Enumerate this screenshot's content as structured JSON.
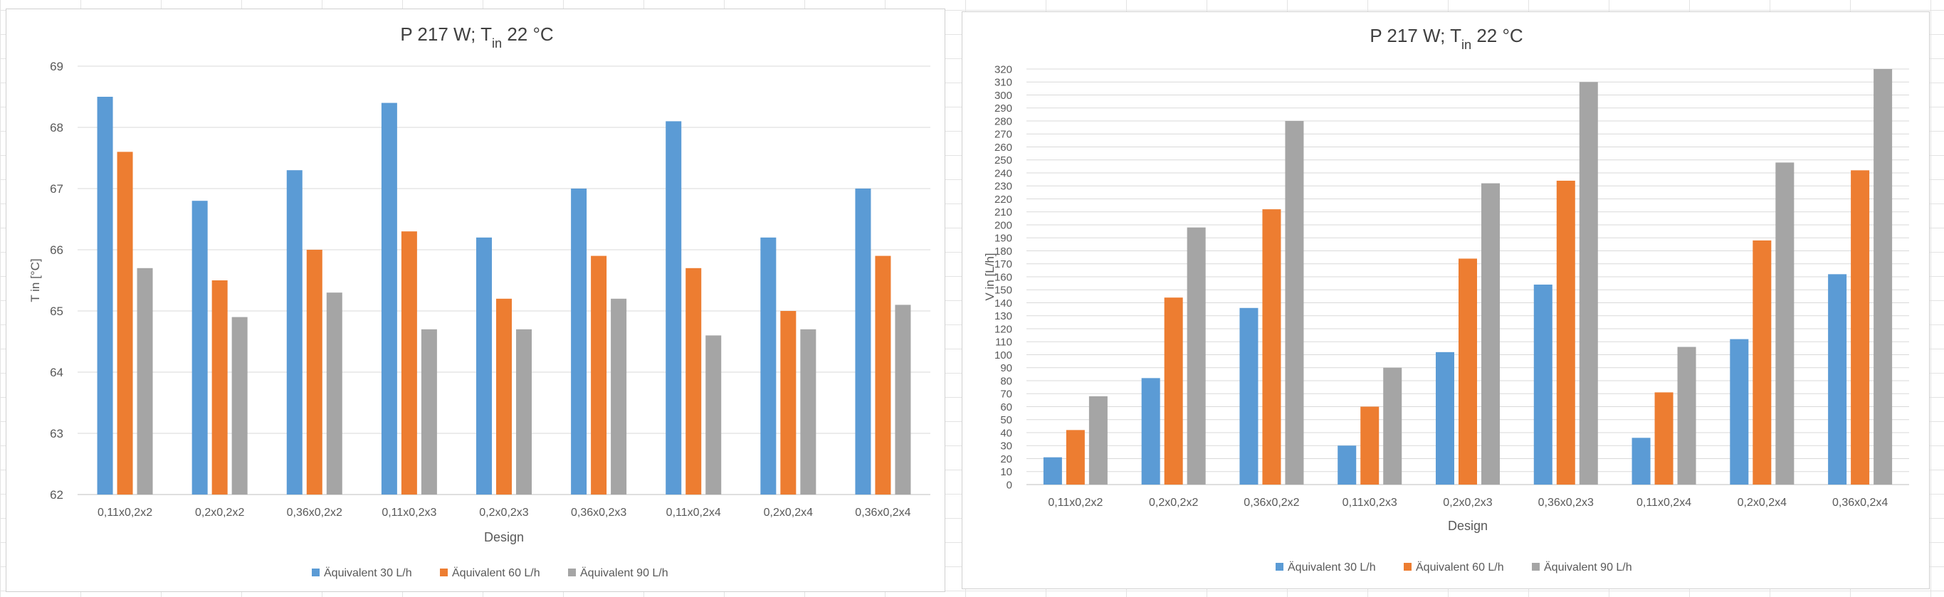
{
  "chart_data": [
    {
      "type": "bar",
      "title": "P 217 W; T",
      "title_sub": "in",
      "title_rest": " 22 °C",
      "xlabel": "Design",
      "ylabel": "T in [°C]",
      "ylim": [
        62,
        69
      ],
      "yticks": [
        62,
        63,
        64,
        65,
        66,
        67,
        68,
        69
      ],
      "grid": true,
      "legend_position": "bottom",
      "categories": [
        "0,11x0,2x2",
        "0,2x0,2x2",
        "0,36x0,2x2",
        "0,11x0,2x3",
        "0,2x0,2x3",
        "0,36x0,2x3",
        "0,11x0,2x4",
        "0,2x0,2x4",
        "0,36x0,2x4"
      ],
      "series": [
        {
          "name": "Äquivalent 30 L/h",
          "color": "#5b9bd5",
          "values": [
            68.5,
            66.8,
            67.3,
            68.4,
            66.2,
            67.0,
            68.1,
            66.2,
            67.0
          ]
        },
        {
          "name": "Äquivalent 60 L/h",
          "color": "#ed7d31",
          "values": [
            67.6,
            65.5,
            66.0,
            66.3,
            65.2,
            65.9,
            65.7,
            65.0,
            65.9
          ]
        },
        {
          "name": "Äquivalent 90 L/h",
          "color": "#a5a5a5",
          "values": [
            65.7,
            64.9,
            65.3,
            64.7,
            64.7,
            65.2,
            64.6,
            64.7,
            65.1
          ]
        }
      ]
    },
    {
      "type": "bar",
      "title": "P 217 W; T",
      "title_sub": "in",
      "title_rest": " 22 °C",
      "xlabel": "Design",
      "ylabel": "V in [L/h]",
      "ylim": [
        0,
        320
      ],
      "yticks": [
        0,
        10,
        20,
        30,
        40,
        50,
        60,
        70,
        80,
        90,
        100,
        110,
        120,
        130,
        140,
        150,
        160,
        170,
        180,
        190,
        200,
        210,
        220,
        230,
        240,
        250,
        260,
        270,
        280,
        290,
        300,
        310,
        320
      ],
      "grid": true,
      "legend_position": "bottom",
      "categories": [
        "0,11x0,2x2",
        "0,2x0,2x2",
        "0,36x0,2x2",
        "0,11x0,2x3",
        "0,2x0,2x3",
        "0,36x0,2x3",
        "0,11x0,2x4",
        "0,2x0,2x4",
        "0,36x0,2x4"
      ],
      "series": [
        {
          "name": "Äquivalent 30 L/h",
          "color": "#5b9bd5",
          "values": [
            21,
            82,
            136,
            30,
            102,
            154,
            36,
            112,
            162
          ]
        },
        {
          "name": "Äquivalent 60 L/h",
          "color": "#ed7d31",
          "values": [
            42,
            144,
            212,
            60,
            174,
            234,
            71,
            188,
            242
          ]
        },
        {
          "name": "Äquivalent 90 L/h",
          "color": "#a5a5a5",
          "values": [
            68,
            198,
            280,
            90,
            232,
            310,
            106,
            248,
            320
          ]
        }
      ]
    }
  ]
}
